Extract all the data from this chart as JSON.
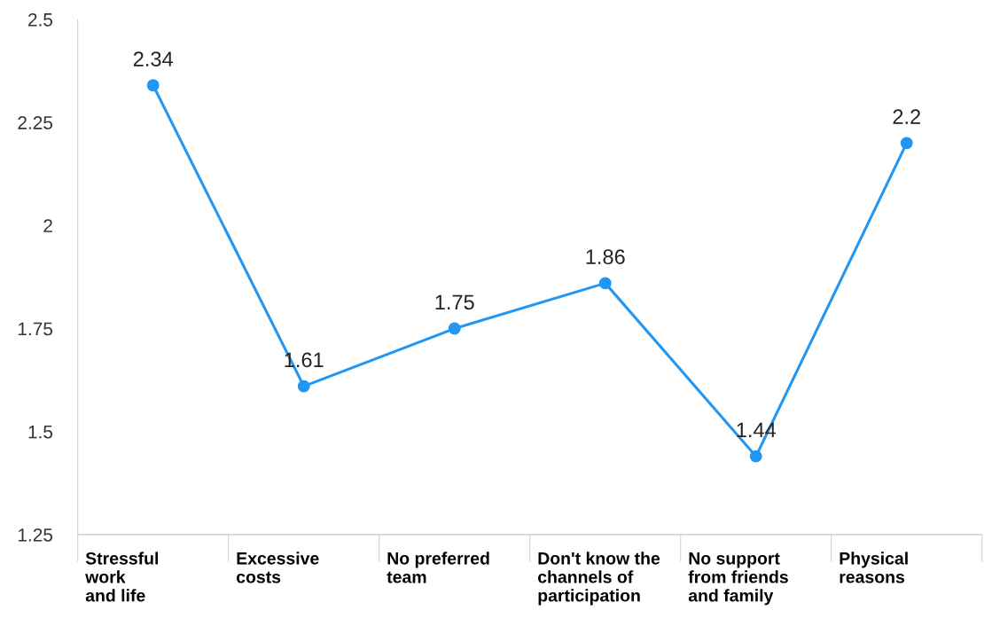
{
  "chart_data": {
    "type": "line",
    "categories": [
      "Stressful\nwork\nand life",
      "Excessive\ncosts",
      "No preferred\nteam",
      "Don't know the\nchannels of\nparticipation",
      "No support\nfrom friends\nand family",
      "Physical\nreasons"
    ],
    "series": [
      {
        "color": "#2196f3",
        "values": [
          2.34,
          1.61,
          1.75,
          1.86,
          1.44,
          2.2
        ]
      }
    ],
    "ylim": [
      1.25,
      2.5
    ],
    "yticks": [
      1.25,
      1.5,
      1.75,
      2,
      2.25,
      2.5
    ],
    "data_labels": true,
    "marker": "circle",
    "line_style": "solid",
    "grid": false,
    "legend": false
  }
}
